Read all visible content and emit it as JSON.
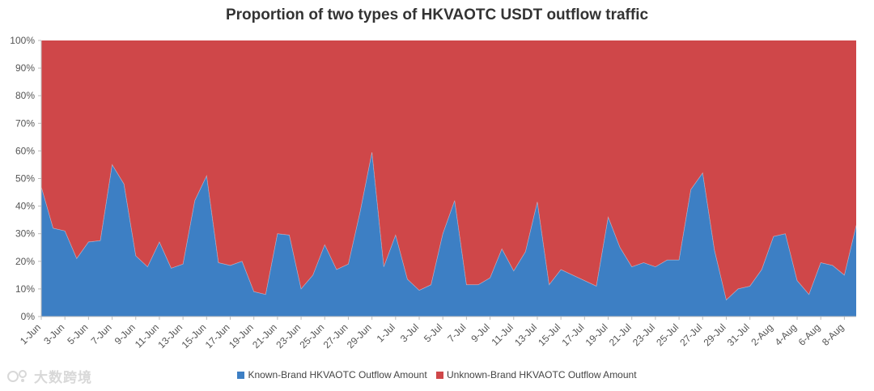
{
  "chart_data": {
    "type": "area",
    "stacked": true,
    "normalized": true,
    "title": "Proportion of two types of HKVAOTC USDT outflow traffic",
    "x_tick_labels": [
      "1-Jun",
      "3-Jun",
      "5-Jun",
      "7-Jun",
      "9-Jun",
      "11-Jun",
      "13-Jun",
      "15-Jun",
      "17-Jun",
      "19-Jun",
      "21-Jun",
      "23-Jun",
      "25-Jun",
      "27-Jun",
      "29-Jun",
      "1-Jul",
      "3-Jul",
      "5-Jul",
      "7-Jul",
      "9-Jul",
      "11-Jul",
      "13-Jul",
      "15-Jul",
      "17-Jul",
      "19-Jul",
      "21-Jul",
      "23-Jul",
      "25-Jul",
      "27-Jul",
      "29-Jul",
      "31-Jul",
      "2-Aug",
      "4-Aug",
      "6-Aug",
      "8-Aug"
    ],
    "y_tick_labels": [
      "0%",
      "10%",
      "20%",
      "30%",
      "40%",
      "50%",
      "60%",
      "70%",
      "80%",
      "90%",
      "100%"
    ],
    "ylim": [
      0,
      100
    ],
    "grid": false,
    "legend_position": "bottom",
    "series": [
      {
        "name": "Known-Brand HKVAOTC Outflow Amount",
        "color": "#3d7fc4",
        "values": [
          47,
          32,
          31,
          21,
          27,
          27.5,
          55,
          48,
          22,
          18,
          27,
          17.5,
          19,
          42,
          51,
          19.5,
          18.5,
          20,
          9,
          8,
          30,
          29.5,
          10,
          15,
          26,
          17,
          19,
          38,
          59.5,
          18,
          29.5,
          13.5,
          9.5,
          11.5,
          30,
          42,
          11.5,
          11.5,
          14,
          24.5,
          16.5,
          23.5,
          41.5,
          11.5,
          17,
          15,
          13,
          11,
          36,
          25,
          18,
          19.5,
          18,
          20.5,
          20.5,
          46,
          52,
          24,
          6,
          10,
          11,
          17,
          29,
          30,
          13,
          8,
          19.5,
          18.5,
          15,
          33
        ]
      },
      {
        "name": "Unknown-Brand HKVAOTC Outflow Amount",
        "color": "#cf4749",
        "values": [
          53,
          68,
          69,
          79,
          73,
          72.5,
          45,
          52,
          78,
          82,
          73,
          82.5,
          81,
          58,
          49,
          80.5,
          81.5,
          80,
          91,
          92,
          70,
          70.5,
          90,
          85,
          74,
          83,
          81,
          62,
          40.5,
          82,
          70.5,
          86.5,
          90.5,
          88.5,
          70,
          58,
          88.5,
          88.5,
          86,
          75.5,
          83.5,
          76.5,
          58.5,
          88.5,
          83,
          85,
          87,
          89,
          64,
          75,
          82,
          80.5,
          82,
          79.5,
          79.5,
          54,
          48,
          76,
          94,
          90,
          89,
          83,
          71,
          70,
          87,
          92,
          80.5,
          81.5,
          85,
          67
        ]
      }
    ]
  },
  "legend": {
    "known_label": "Known-Brand HKVAOTC Outflow Amount",
    "unknown_label": "Unknown-Brand HKVAOTC Outflow Amount"
  },
  "watermark": {
    "text": "大数跨境"
  }
}
